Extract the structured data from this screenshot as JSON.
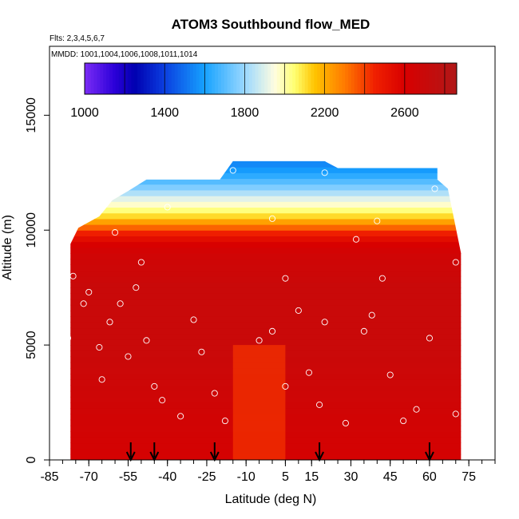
{
  "chart_data": {
    "type": "heatmap",
    "title": "ATOM3 Southbound flow_MED",
    "annotations": [
      "Flts: 2,3,4,5,6,7",
      "MMDD: 1001,1004,1006,1008,1011,1014"
    ],
    "xlabel": "Latitude (deg N)",
    "ylabel": "Altitude (m)",
    "xlim": [
      -85,
      85
    ],
    "ylim": [
      0,
      18000
    ],
    "x_ticks": [
      -85,
      -70,
      -55,
      -40,
      -25,
      -10,
      5,
      15,
      30,
      45,
      60,
      75
    ],
    "y_ticks": [
      0,
      5000,
      10000,
      15000
    ],
    "colorbar": {
      "ticks": [
        1000,
        1400,
        1800,
        2200,
        2600
      ],
      "min": 1000,
      "max": 2860,
      "step": 200,
      "stops": [
        {
          "value": 1000,
          "color": "#7b2cf5"
        },
        {
          "value": 1150,
          "color": "#2b00d8"
        },
        {
          "value": 1250,
          "color": "#0000b0"
        },
        {
          "value": 1400,
          "color": "#0b3fe0"
        },
        {
          "value": 1600,
          "color": "#16a2ff"
        },
        {
          "value": 1800,
          "color": "#9ad8ff"
        },
        {
          "value": 1950,
          "color": "#fffde0"
        },
        {
          "value": 2050,
          "color": "#ffff70"
        },
        {
          "value": 2150,
          "color": "#ffc400"
        },
        {
          "value": 2300,
          "color": "#ff7a00"
        },
        {
          "value": 2450,
          "color": "#f02000"
        },
        {
          "value": 2600,
          "color": "#d80000"
        },
        {
          "value": 2860,
          "color": "#b01818"
        }
      ]
    },
    "top_of_data": [
      {
        "lat": -77,
        "alt": 9400
      },
      {
        "lat": -74,
        "alt": 10100
      },
      {
        "lat": -66,
        "alt": 10600
      },
      {
        "lat": -61,
        "alt": 11300
      },
      {
        "lat": -55,
        "alt": 11700
      },
      {
        "lat": -48,
        "alt": 12200
      },
      {
        "lat": -20,
        "alt": 12200
      },
      {
        "lat": -15,
        "alt": 13000
      },
      {
        "lat": 20,
        "alt": 13000
      },
      {
        "lat": 25,
        "alt": 12700
      },
      {
        "lat": 63,
        "alt": 12700
      },
      {
        "lat": 63,
        "alt": 12200
      },
      {
        "lat": 67,
        "alt": 11800
      },
      {
        "lat": 72,
        "alt": 9000
      }
    ],
    "layers": [
      {
        "alt": 12800,
        "value": 1550
      },
      {
        "alt": 12300,
        "value": 1650
      },
      {
        "alt": 11800,
        "value": 1780
      },
      {
        "alt": 11400,
        "value": 1900
      },
      {
        "alt": 11000,
        "value": 2000
      },
      {
        "alt": 10600,
        "value": 2120
      },
      {
        "alt": 10200,
        "value": 2300
      },
      {
        "alt": 9900,
        "value": 2450
      },
      {
        "alt": 9500,
        "value": 2580
      },
      {
        "alt": 9000,
        "value": 2650
      },
      {
        "alt": 7500,
        "value": 2700
      },
      {
        "alt": 5000,
        "value": 2700
      },
      {
        "alt": 2000,
        "value": 2650
      },
      {
        "alt": 0,
        "value": 2620
      }
    ],
    "highlight_band": {
      "lat_range": [
        -15,
        5
      ],
      "alt_range": [
        0,
        5000
      ],
      "value": 2420
    },
    "sample_points": [
      {
        "lat": -78,
        "alt": 5300
      },
      {
        "lat": -76,
        "alt": 8000
      },
      {
        "lat": -72,
        "alt": 6800
      },
      {
        "lat": -70,
        "alt": 7300
      },
      {
        "lat": -66,
        "alt": 4900
      },
      {
        "lat": -65,
        "alt": 3500
      },
      {
        "lat": -62,
        "alt": 6000
      },
      {
        "lat": -58,
        "alt": 6800
      },
      {
        "lat": -55,
        "alt": 4500
      },
      {
        "lat": -52,
        "alt": 7500
      },
      {
        "lat": -50,
        "alt": 8600
      },
      {
        "lat": -48,
        "alt": 5200
      },
      {
        "lat": -45,
        "alt": 3200
      },
      {
        "lat": -42,
        "alt": 2600
      },
      {
        "lat": -35,
        "alt": 1900
      },
      {
        "lat": -30,
        "alt": 6100
      },
      {
        "lat": -27,
        "alt": 4700
      },
      {
        "lat": -22,
        "alt": 2900
      },
      {
        "lat": -18,
        "alt": 1700
      },
      {
        "lat": -5,
        "alt": 5200
      },
      {
        "lat": 0,
        "alt": 5600
      },
      {
        "lat": 5,
        "alt": 3200
      },
      {
        "lat": 5,
        "alt": 7900
      },
      {
        "lat": 10,
        "alt": 6500
      },
      {
        "lat": 14,
        "alt": 3800
      },
      {
        "lat": 18,
        "alt": 2400
      },
      {
        "lat": 20,
        "alt": 6000
      },
      {
        "lat": 28,
        "alt": 1600
      },
      {
        "lat": 32,
        "alt": 9600
      },
      {
        "lat": 35,
        "alt": 5600
      },
      {
        "lat": 38,
        "alt": 6300
      },
      {
        "lat": 42,
        "alt": 7900
      },
      {
        "lat": 45,
        "alt": 3700
      },
      {
        "lat": 50,
        "alt": 1700
      },
      {
        "lat": 55,
        "alt": 2200
      },
      {
        "lat": 60,
        "alt": 5300
      },
      {
        "lat": 62,
        "alt": 11800
      },
      {
        "lat": 20,
        "alt": 12500
      },
      {
        "lat": -15,
        "alt": 12600
      },
      {
        "lat": -40,
        "alt": 11000
      },
      {
        "lat": 0,
        "alt": 10500
      },
      {
        "lat": 40,
        "alt": 10400
      },
      {
        "lat": -60,
        "alt": 9900
      },
      {
        "lat": 70,
        "alt": 2000
      },
      {
        "lat": 70,
        "alt": 8600
      }
    ],
    "flight_markers_lat": [
      -54,
      -45,
      -22,
      18,
      60
    ]
  }
}
